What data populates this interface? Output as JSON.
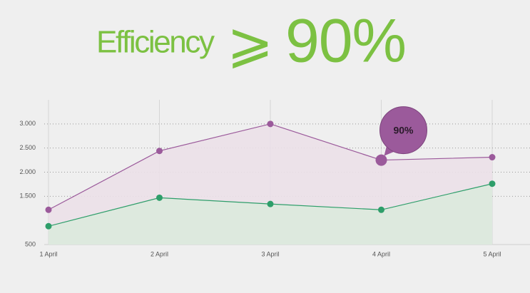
{
  "chart_data": {
    "type": "area",
    "title": "Efficiency",
    "title_symbol": "⩾",
    "title_value": "90%",
    "categories": [
      "1 April",
      "2 April",
      "3 April",
      "4 April",
      "5 April"
    ],
    "series": [
      {
        "color": "#9b5a9b",
        "fill": "#ebe0e8",
        "values": [
          1220,
          2440,
          3000,
          2250,
          2310
        ]
      },
      {
        "color": "#2e9e6a",
        "fill": "#dbeadd",
        "values": [
          880,
          1470,
          1340,
          1220,
          1760
        ]
      }
    ],
    "ylim": [
      500,
      3500
    ],
    "yticks": [
      {
        "value": 3000,
        "label": "3.000"
      },
      {
        "value": 2500,
        "label": "2.500"
      },
      {
        "value": 2000,
        "label": "2.000"
      },
      {
        "value": 1500,
        "label": "1.500"
      },
      500
    ],
    "grid": true,
    "annotation": {
      "text": "90%",
      "series": 0,
      "index": 3
    }
  }
}
